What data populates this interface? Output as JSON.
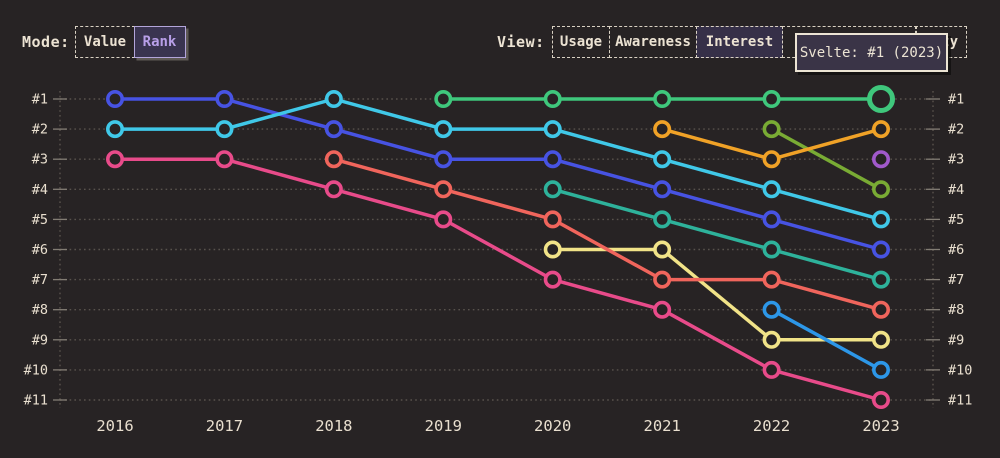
{
  "toolbar": {
    "mode": {
      "label": "Mode:",
      "options": [
        {
          "label": "Value",
          "active": false
        },
        {
          "label": "Rank",
          "active": true
        }
      ]
    },
    "view": {
      "label": "View:",
      "options": [
        {
          "label": "Usage",
          "active": false
        },
        {
          "label": "Awareness",
          "active": false
        },
        {
          "label": "Interest",
          "active": true
        },
        {
          "label": "",
          "active": false
        },
        {
          "label": "ty",
          "active": false
        }
      ]
    }
  },
  "tooltip": {
    "text": "Svelte: #1 (2023)"
  },
  "colors": {
    "background": "#272324",
    "text_cream": "#e9dfcf",
    "gridline": "#59534d",
    "tick": "#837d74",
    "active_purple_bg": "#3a3450",
    "active_purple_text": "#b89fe8",
    "tooltip_bg": "#3a3447",
    "tooltip_border": "#ece4d4"
  },
  "chart_data": {
    "type": "line",
    "subtype": "bump-chart",
    "x_labels": [
      "2016",
      "2017",
      "2018",
      "2019",
      "2020",
      "2021",
      "2022",
      "2023"
    ],
    "years": [
      2016,
      2017,
      2018,
      2019,
      2020,
      2021,
      2022,
      2023
    ],
    "rank_labels": [
      "#1",
      "#2",
      "#3",
      "#4",
      "#5",
      "#6",
      "#7",
      "#8",
      "#9",
      "#10",
      "#11"
    ],
    "rank_range": [
      1,
      11
    ],
    "grid": "dotted-horizontal",
    "series": [
      {
        "id": "blue",
        "name": "",
        "color": "#4753e3",
        "points": [
          {
            "year": 2016,
            "rank": 1
          },
          {
            "year": 2017,
            "rank": 1
          },
          {
            "year": 2018,
            "rank": 2
          },
          {
            "year": 2019,
            "rank": 3
          },
          {
            "year": 2020,
            "rank": 3
          },
          {
            "year": 2021,
            "rank": 4
          },
          {
            "year": 2022,
            "rank": 5
          },
          {
            "year": 2023,
            "rank": 6
          }
        ]
      },
      {
        "id": "cyan",
        "name": "",
        "color": "#40c8e8",
        "points": [
          {
            "year": 2016,
            "rank": 2
          },
          {
            "year": 2017,
            "rank": 2
          },
          {
            "year": 2018,
            "rank": 1
          },
          {
            "year": 2019,
            "rank": 2
          },
          {
            "year": 2020,
            "rank": 2
          },
          {
            "year": 2021,
            "rank": 3
          },
          {
            "year": 2022,
            "rank": 4
          },
          {
            "year": 2023,
            "rank": 5
          }
        ]
      },
      {
        "id": "pink",
        "name": "",
        "color": "#e84b8a",
        "points": [
          {
            "year": 2016,
            "rank": 3
          },
          {
            "year": 2017,
            "rank": 3
          },
          {
            "year": 2018,
            "rank": 4
          },
          {
            "year": 2019,
            "rank": 5
          },
          {
            "year": 2020,
            "rank": 7
          },
          {
            "year": 2021,
            "rank": 8
          },
          {
            "year": 2022,
            "rank": 10
          },
          {
            "year": 2023,
            "rank": 11
          }
        ]
      },
      {
        "id": "yellow",
        "name": "",
        "color": "#f1e388",
        "points": [
          {
            "year": 2020,
            "rank": 6
          },
          {
            "year": 2021,
            "rank": 6
          },
          {
            "year": 2022,
            "rank": 9
          },
          {
            "year": 2023,
            "rank": 9
          }
        ]
      },
      {
        "id": "salmon",
        "name": "",
        "color": "#f0655c",
        "points": [
          {
            "year": 2018,
            "rank": 3
          },
          {
            "year": 2019,
            "rank": 4
          },
          {
            "year": 2020,
            "rank": 5
          },
          {
            "year": 2021,
            "rank": 7
          },
          {
            "year": 2022,
            "rank": 7
          },
          {
            "year": 2023,
            "rank": 8
          }
        ]
      },
      {
        "id": "teal",
        "name": "",
        "color": "#2eb29b",
        "points": [
          {
            "year": 2020,
            "rank": 4
          },
          {
            "year": 2021,
            "rank": 5
          },
          {
            "year": 2022,
            "rank": 6
          },
          {
            "year": 2023,
            "rank": 7
          }
        ]
      },
      {
        "id": "olive",
        "name": "",
        "color": "#79ab34",
        "points": [
          {
            "year": 2022,
            "rank": 2
          },
          {
            "year": 2023,
            "rank": 4
          }
        ]
      },
      {
        "id": "orange",
        "name": "",
        "color": "#f0a227",
        "points": [
          {
            "year": 2021,
            "rank": 2
          },
          {
            "year": 2022,
            "rank": 3
          },
          {
            "year": 2023,
            "rank": 2
          }
        ]
      },
      {
        "id": "sky",
        "name": "",
        "color": "#2d97e8",
        "points": [
          {
            "year": 2022,
            "rank": 8
          },
          {
            "year": 2023,
            "rank": 10
          }
        ]
      },
      {
        "id": "purple",
        "name": "",
        "color": "#a159cb",
        "points": [
          {
            "year": 2023,
            "rank": 3
          }
        ]
      },
      {
        "id": "green",
        "name": "Svelte",
        "color": "#3fc77c",
        "highlight_year": 2023,
        "points": [
          {
            "year": 2019,
            "rank": 1
          },
          {
            "year": 2020,
            "rank": 1
          },
          {
            "year": 2021,
            "rank": 1
          },
          {
            "year": 2022,
            "rank": 1
          },
          {
            "year": 2023,
            "rank": 1
          }
        ]
      }
    ]
  }
}
